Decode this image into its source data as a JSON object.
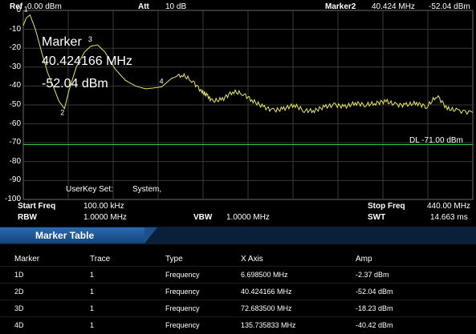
{
  "header": {
    "ref_label": "Ref",
    "ref_value": "0.00 dBm",
    "att_label": "Att",
    "att_value": "10 dB",
    "marker_label": "Marker2",
    "marker_freq": "40.424 MHz",
    "marker_amp": "-52.04 dBm"
  },
  "plot": {
    "y_ticks": [
      "0",
      "-10",
      "-20",
      "-30",
      "-40",
      "-50",
      "-60",
      "-70",
      "-80",
      "-90",
      "-100"
    ],
    "ylim": [
      -100,
      0
    ],
    "xlim_mhz": [
      0.1,
      440
    ],
    "display_line_label": "DL -71.00 dBm",
    "display_line_value": -71,
    "marker_popup": {
      "line1": "Marker",
      "line2": "40.424166 MHz",
      "line3": "-52.04 dBm"
    },
    "marker_labels": [
      "1",
      "2",
      "3",
      "4"
    ],
    "userkey_label": "UserKey Set:",
    "userkey_value": "System,",
    "trace_color": "#e8e85a",
    "dl_color": "#2ecc40",
    "grid_color": "#3a3a3a"
  },
  "chart_data": {
    "type": "line",
    "xlabel": "",
    "ylabel": "",
    "ylim": [
      -100,
      0
    ],
    "xlim": [
      0.1,
      440
    ],
    "series": [
      {
        "x": [
          0.1,
          3,
          6.7,
          12,
          18,
          24,
          30,
          35,
          40.4,
          45,
          52,
          60,
          66,
          72.7,
          80,
          90,
          100,
          110,
          120,
          128,
          135.7,
          145,
          155,
          165,
          175,
          180,
          185,
          195,
          205,
          215,
          225,
          235,
          245,
          255,
          265,
          275,
          285,
          295,
          305,
          315,
          325,
          335,
          345,
          355,
          365,
          375,
          385,
          395,
          405,
          415,
          425,
          440
        ],
        "y": [
          -8,
          -4,
          -2.4,
          -10,
          -22,
          -33,
          -41,
          -48,
          -52,
          -42,
          -30,
          -22,
          -19,
          -18.2,
          -22,
          -31,
          -37,
          -40,
          -41.5,
          -41,
          -40.4,
          -36,
          -34,
          -37,
          -43,
          -45,
          -48,
          -47,
          -43,
          -44,
          -48,
          -51,
          -53,
          -52,
          -50,
          -53,
          -53,
          -51,
          -50,
          -51,
          -49,
          -50,
          -49,
          -48,
          -50,
          -50,
          -49,
          -51,
          -45,
          -52,
          -53,
          -54
        ]
      }
    ]
  },
  "bottom": {
    "start_freq_label": "Start Freq",
    "start_freq_value": "100.00 kHz",
    "stop_freq_label": "Stop Freq",
    "stop_freq_value": "440.00 MHz",
    "rbw_label": "RBW",
    "rbw_value": "1.0000 MHz",
    "vbw_label": "VBW",
    "vbw_value": "1.0000 MHz",
    "swt_label": "SWT",
    "swt_value": "14.663 ms"
  },
  "marker_table": {
    "title": "Marker Table",
    "headers": [
      "Marker",
      "Trace",
      "Type",
      "X Axis",
      "Amp"
    ],
    "rows": [
      [
        "1D",
        "1",
        "Frequency",
        "6.698500 MHz",
        "-2.37 dBm"
      ],
      [
        "2D",
        "1",
        "Frequency",
        "40.424166 MHz",
        "-52.04 dBm"
      ],
      [
        "3D",
        "1",
        "Frequency",
        "72.683500 MHz",
        "-18.23 dBm"
      ],
      [
        "4D",
        "1",
        "Frequency",
        "135.735833 MHz",
        "-40.42 dBm"
      ]
    ]
  }
}
